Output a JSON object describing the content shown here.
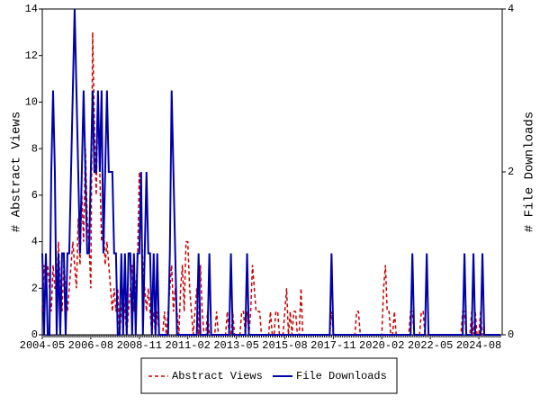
{
  "chart_data": {
    "type": "line",
    "y_label": "# Abstract Views",
    "y2_label": "# File Downloads",
    "categories": [
      "2004-05",
      null,
      null,
      null,
      null,
      null,
      null,
      null,
      null,
      null,
      null,
      null,
      null,
      null,
      null,
      null,
      null,
      null,
      null,
      null,
      null,
      null,
      null,
      null,
      null,
      null,
      null,
      "2006-08",
      null,
      null,
      null,
      null,
      null,
      null,
      null,
      null,
      null,
      null,
      null,
      null,
      null,
      null,
      null,
      null,
      null,
      null,
      null,
      null,
      null,
      null,
      null,
      null,
      null,
      null,
      "2008-11",
      null,
      null,
      null,
      null,
      null,
      null,
      null,
      null,
      null,
      null,
      null,
      null,
      null,
      null,
      null,
      null,
      null,
      null,
      null,
      null,
      null,
      null,
      null,
      null,
      null,
      null,
      "2011-02",
      null,
      null,
      null,
      null,
      null,
      null,
      null,
      null,
      null,
      null,
      null,
      null,
      null,
      null,
      null,
      null,
      null,
      null,
      null,
      null,
      null,
      null,
      null,
      null,
      null,
      null,
      "2013-05",
      null,
      null,
      null,
      null,
      null,
      null,
      null,
      null,
      null,
      null,
      null,
      null,
      null,
      null,
      null,
      null,
      null,
      null,
      null,
      null,
      null,
      null,
      null,
      null,
      null,
      null,
      "2015-08",
      null,
      null,
      null,
      null,
      null,
      null,
      null,
      null,
      null,
      null,
      null,
      null,
      null,
      null,
      null,
      null,
      null,
      null,
      null,
      null,
      null,
      null,
      null,
      null,
      null,
      null,
      "2017-11",
      null,
      null,
      null,
      null,
      null,
      null,
      null,
      null,
      null,
      null,
      null,
      null,
      null,
      null,
      null,
      null,
      null,
      null,
      null,
      null,
      null,
      null,
      null,
      null,
      null,
      null,
      "2020-02",
      null,
      null,
      null,
      null,
      null,
      null,
      null,
      null,
      null,
      null,
      null,
      null,
      null,
      null,
      null,
      null,
      null,
      null,
      null,
      null,
      null,
      null,
      null,
      null,
      null,
      null,
      "2022-05",
      null,
      null,
      null,
      null,
      null,
      null,
      null,
      null,
      null,
      null,
      null,
      null,
      null,
      null,
      null,
      null,
      null,
      null,
      null,
      null,
      null,
      null,
      null,
      null,
      null,
      null,
      "2024-08",
      null,
      null,
      null,
      null,
      null,
      null,
      null,
      null,
      null,
      null,
      null,
      null
    ],
    "series": [
      {
        "name": "Abstract Views",
        "color": "#cc0000",
        "dashed": true,
        "values": [
          1,
          3,
          2,
          3,
          2,
          1,
          3,
          2,
          2,
          4,
          2,
          1,
          3,
          2,
          1,
          2,
          3,
          4,
          3,
          2,
          5,
          3,
          6,
          4,
          8,
          5,
          4,
          2,
          13,
          9,
          6,
          10,
          7,
          4,
          5,
          3,
          4,
          3,
          2,
          1,
          2,
          1,
          2,
          0,
          1,
          2,
          1,
          0,
          1,
          2,
          3,
          1,
          2,
          3,
          7,
          5,
          3,
          2,
          1,
          2,
          1,
          0,
          1,
          0,
          1,
          0,
          0,
          0,
          1,
          0,
          1,
          2,
          3,
          1,
          2,
          1,
          0,
          2,
          3,
          1,
          4,
          4,
          2,
          1,
          0,
          1,
          2,
          0,
          3,
          1,
          0,
          0,
          1,
          0,
          0,
          0,
          0,
          1,
          0,
          0,
          0,
          0,
          0,
          1,
          0,
          0,
          1,
          0,
          0,
          0,
          0,
          1,
          1,
          0,
          1,
          0,
          1,
          3,
          2,
          1,
          1,
          1,
          0,
          0,
          0,
          0,
          0,
          1,
          0,
          0,
          1,
          1,
          0,
          0,
          0,
          1,
          2,
          0,
          1,
          0,
          1,
          1,
          0,
          0,
          2,
          0,
          0,
          0,
          0,
          0,
          0,
          0,
          0,
          0,
          0,
          0,
          0,
          0,
          0,
          0,
          0,
          1,
          0,
          0,
          0,
          0,
          0,
          0,
          0,
          0,
          0,
          0,
          0,
          0,
          0,
          1,
          1,
          0,
          0,
          0,
          0,
          0,
          0,
          0,
          0,
          0,
          0,
          0,
          0,
          0,
          2,
          3,
          1,
          1,
          0,
          0,
          1,
          0,
          0,
          0,
          0,
          0,
          0,
          0,
          0,
          1,
          1,
          0,
          0,
          0,
          0,
          1,
          1,
          0,
          0,
          0,
          0,
          0,
          0,
          0,
          0,
          0,
          0,
          0,
          0,
          0,
          0,
          0,
          0,
          0,
          0,
          0,
          0,
          0,
          1,
          1,
          0,
          0,
          0,
          1,
          0,
          1,
          0,
          0,
          1,
          0,
          0,
          0,
          0,
          0,
          0,
          0,
          0,
          0,
          0,
          0
        ]
      },
      {
        "name": "File Downloads",
        "color": "#0000aa",
        "axis": "y2",
        "dashed": false,
        "values": [
          1,
          0,
          1,
          0,
          0,
          2,
          3,
          2,
          0,
          1,
          0,
          1,
          1,
          0,
          1,
          1,
          2,
          3,
          4,
          3,
          2,
          1,
          2,
          3,
          2,
          1,
          1,
          2,
          3,
          2,
          2,
          3,
          2,
          3,
          1,
          2,
          3,
          2,
          2,
          2,
          1,
          1,
          0,
          0,
          1,
          0,
          1,
          0,
          1,
          1,
          0,
          1,
          0,
          1,
          1,
          2,
          0,
          1,
          2,
          1,
          1,
          0,
          1,
          0,
          1,
          0,
          0,
          0,
          0,
          0,
          0,
          1,
          3,
          2,
          1,
          0,
          0,
          0,
          0,
          0,
          0,
          0,
          0,
          0,
          0,
          0,
          0,
          1,
          0,
          0,
          0,
          0,
          0,
          1,
          0,
          0,
          0,
          0,
          0,
          0,
          0,
          0,
          0,
          0,
          0,
          1,
          0,
          0,
          0,
          0,
          0,
          0,
          0,
          0,
          1,
          0,
          0,
          0,
          0,
          0,
          0,
          0,
          0,
          0,
          0,
          0,
          0,
          0,
          0,
          0,
          0,
          0,
          0,
          0,
          0,
          0,
          0,
          0,
          0,
          0,
          0,
          0,
          0,
          0,
          0,
          0,
          0,
          0,
          0,
          0,
          0,
          0,
          0,
          0,
          0,
          0,
          0,
          0,
          0,
          0,
          0,
          1,
          0,
          0,
          0,
          0,
          0,
          0,
          0,
          0,
          0,
          0,
          0,
          0,
          0,
          0,
          0,
          0,
          0,
          0,
          0,
          0,
          0,
          0,
          0,
          0,
          0,
          0,
          0,
          0,
          0,
          0,
          0,
          0,
          0,
          0,
          0,
          0,
          0,
          0,
          0,
          0,
          0,
          0,
          0,
          0,
          1,
          0,
          0,
          0,
          0,
          0,
          0,
          0,
          1,
          0,
          0,
          0,
          0,
          0,
          0,
          0,
          0,
          0,
          0,
          0,
          0,
          0,
          0,
          0,
          0,
          0,
          0,
          0,
          0,
          1,
          0,
          0,
          0,
          0,
          1,
          0,
          0,
          0,
          0,
          1,
          0,
          0,
          0,
          0,
          0,
          0,
          0,
          0,
          0,
          0
        ]
      }
    ],
    "ylim": [
      0,
      14
    ],
    "yticks": [
      0,
      2,
      4,
      6,
      8,
      10,
      12,
      14
    ],
    "y2lim": [
      0,
      4
    ],
    "y2ticks": [
      0,
      2,
      4
    ],
    "legend": "bottom"
  }
}
